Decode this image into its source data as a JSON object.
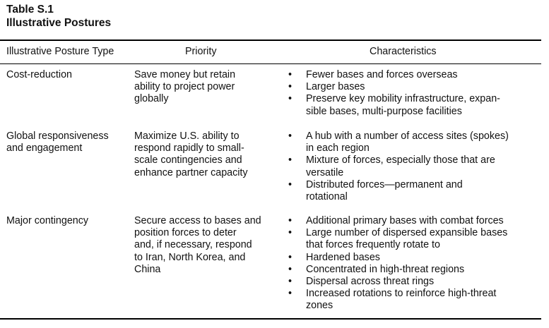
{
  "caption": {
    "number": "Table S.1",
    "title": "Illustrative Postures"
  },
  "headers": {
    "type": "Illustrative Posture Type",
    "priority": "Priority",
    "characteristics": "Characteristics"
  },
  "rows": [
    {
      "type": [
        "Cost-reduction"
      ],
      "priority": [
        "Save money but retain",
        "ability to project power",
        "globally"
      ],
      "characteristics": [
        [
          "Fewer bases and forces overseas"
        ],
        [
          "Larger bases"
        ],
        [
          "Preserve key mobility infrastructure, expan-",
          "sible bases, multi-purpose facilities"
        ]
      ]
    },
    {
      "type": [
        "Global responsiveness",
        "and engagement"
      ],
      "priority": [
        "Maximize U.S. ability to",
        "respond rapidly to small-",
        "scale contingencies and",
        "enhance partner capacity"
      ],
      "characteristics": [
        [
          "A hub with a number of access sites (spokes)",
          "in each region"
        ],
        [
          "Mixture of forces, especially those that are",
          "versatile"
        ],
        [
          "Distributed forces—permanent and",
          "rotational"
        ]
      ]
    },
    {
      "type": [
        "Major contingency"
      ],
      "priority": [
        "Secure access to bases and",
        "position forces to deter",
        "and, if necessary, respond",
        "to Iran, North Korea, and",
        "China"
      ],
      "characteristics": [
        [
          "Additional primary bases with combat forces"
        ],
        [
          "Large number of dispersed expansible bases",
          "that forces frequently rotate to"
        ],
        [
          "Hardened bases"
        ],
        [
          "Concentrated in high-threat regions"
        ],
        [
          "Dispersal across threat rings"
        ],
        [
          "Increased rotations to reinforce high-threat",
          "zones"
        ]
      ]
    }
  ]
}
